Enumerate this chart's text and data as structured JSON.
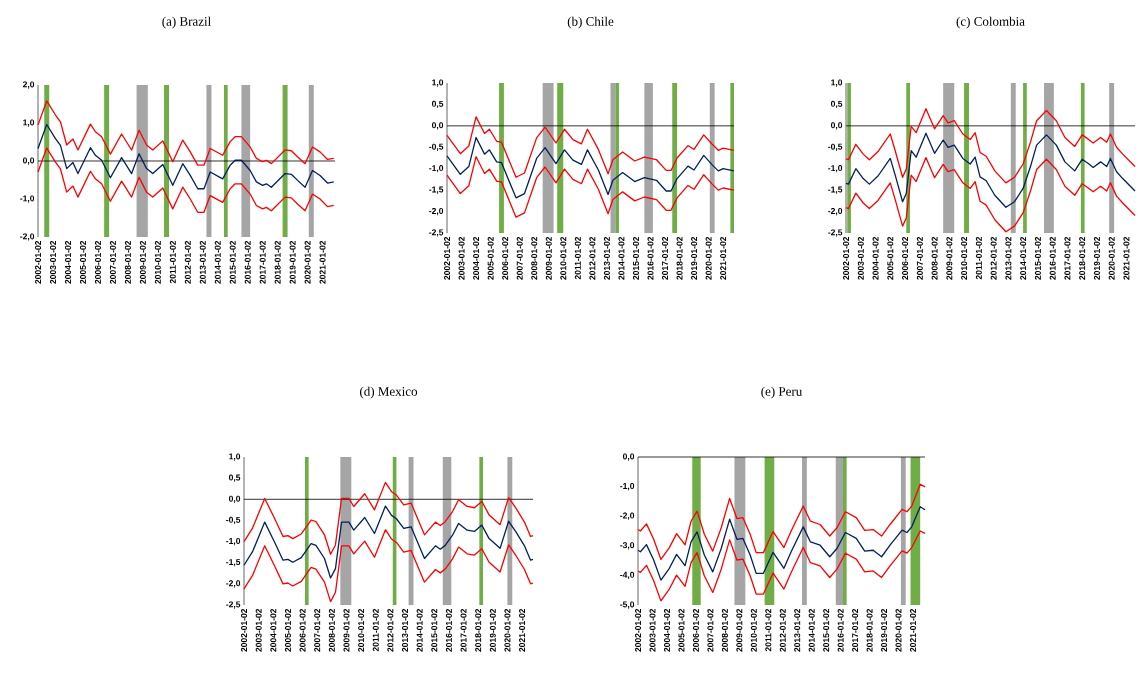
{
  "chart_data": [
    {
      "type": "line",
      "title": "(a) Brazil",
      "x": [
        "2002-01",
        "2002-08",
        "2003-03",
        "2003-07",
        "2003-12",
        "2004-05",
        "2004-09",
        "2005-07",
        "2005-11",
        "2006-04",
        "2006-11",
        "2007-08",
        "2008-04",
        "2008-10",
        "2009-04",
        "2009-09",
        "2010-05",
        "2011-01",
        "2011-09",
        "2012-03",
        "2012-09",
        "2013-02",
        "2013-07",
        "2014-05",
        "2014-11",
        "2015-03",
        "2015-08",
        "2016-03",
        "2016-08",
        "2017-01",
        "2017-04",
        "2017-08",
        "2018-07",
        "2018-12",
        "2019-05",
        "2019-11",
        "2020-05",
        "2020-11",
        "2021-05",
        "2021-10"
      ],
      "series": [
        {
          "color": "#ff0000",
          "values": [
            0.95,
            1.58,
            1.21,
            1.03,
            0.42,
            0.58,
            0.29,
            0.97,
            0.77,
            0.64,
            0.18,
            0.71,
            0.29,
            0.81,
            0.42,
            0.29,
            0.53,
            -0.02,
            0.55,
            0.24,
            -0.11,
            -0.11,
            0.33,
            0.15,
            0.51,
            0.64,
            0.64,
            0.37,
            0.07,
            -0.02,
            0.02,
            -0.07,
            0.29,
            0.27,
            0.11,
            -0.07,
            0.37,
            0.24,
            0.04,
            0.07
          ]
        },
        {
          "color": "#002060",
          "values": [
            0.33,
            0.96,
            0.59,
            0.41,
            -0.2,
            -0.04,
            -0.33,
            0.35,
            0.15,
            0.02,
            -0.44,
            0.09,
            -0.33,
            0.19,
            -0.2,
            -0.33,
            -0.09,
            -0.64,
            -0.07,
            -0.38,
            -0.73,
            -0.73,
            -0.29,
            -0.47,
            -0.11,
            0.02,
            0.02,
            -0.25,
            -0.55,
            -0.64,
            -0.6,
            -0.69,
            -0.33,
            -0.35,
            -0.51,
            -0.69,
            -0.25,
            -0.38,
            -0.58,
            -0.55
          ]
        },
        {
          "color": "#ff0000",
          "values": [
            -0.29,
            0.34,
            -0.03,
            -0.21,
            -0.82,
            -0.66,
            -0.95,
            -0.27,
            -0.47,
            -0.6,
            -1.06,
            -0.53,
            -0.95,
            -0.43,
            -0.82,
            -0.95,
            -0.71,
            -1.26,
            -0.69,
            -1.0,
            -1.35,
            -1.35,
            -0.91,
            -1.09,
            -0.73,
            -0.6,
            -0.6,
            -0.87,
            -1.17,
            -1.26,
            -1.22,
            -1.31,
            -0.95,
            -0.97,
            -1.13,
            -1.31,
            -0.87,
            -1.0,
            -1.2,
            -1.17
          ]
        }
      ],
      "xlim": [
        "2002-01",
        "2021-11"
      ],
      "ylim": [
        -2,
        2
      ],
      "xticks": [
        "2002-01-02",
        "2003-01-02",
        "2004-01-02",
        "2005-01-02",
        "2006-01-02",
        "2007-01-02",
        "2008-01-02",
        "2009-01-02",
        "2010-01-02",
        "2011-01-02",
        "2012-01-02",
        "2013-01-02",
        "2014-01-02",
        "2015-01-02",
        "2016-01-02",
        "2017-01-02",
        "2018-01-02",
        "2019-01-02",
        "2020-01-02",
        "2021-01-02"
      ],
      "yticks": [
        {
          "value": 2,
          "label": "2,0"
        },
        {
          "value": 1,
          "label": "1,0"
        },
        {
          "value": 0,
          "label": "0,0"
        },
        {
          "value": -1,
          "label": "-1,0"
        },
        {
          "value": -2,
          "label": "-2,0"
        }
      ],
      "ref_lines": [
        {
          "axis": "y",
          "value": 0,
          "color": "#000000"
        }
      ],
      "bands": [
        {
          "axis": "x",
          "from": "2002-06",
          "to": "2002-10",
          "color": "#70ad47"
        },
        {
          "axis": "x",
          "from": "2006-06",
          "to": "2006-10",
          "color": "#70ad47"
        },
        {
          "axis": "x",
          "from": "2008-08",
          "to": "2009-05",
          "color": "#a5a5a5"
        },
        {
          "axis": "x",
          "from": "2010-06",
          "to": "2010-10",
          "color": "#70ad47"
        },
        {
          "axis": "x",
          "from": "2013-04",
          "to": "2013-08",
          "color": "#a5a5a5"
        },
        {
          "axis": "x",
          "from": "2014-06",
          "to": "2014-09",
          "color": "#70ad47"
        },
        {
          "axis": "x",
          "from": "2015-08",
          "to": "2016-03",
          "color": "#a5a5a5"
        },
        {
          "axis": "x",
          "from": "2018-05",
          "to": "2018-09",
          "color": "#70ad47"
        },
        {
          "axis": "x",
          "from": "2020-02",
          "to": "2020-06",
          "color": "#a5a5a5"
        }
      ]
    },
    {
      "type": "line",
      "title": "(b) Chile",
      "x": [
        "2002-01",
        "2002-12",
        "2003-07",
        "2004-01",
        "2004-08",
        "2004-12",
        "2005-06",
        "2005-10",
        "2006-10",
        "2007-05",
        "2008-03",
        "2008-10",
        "2009-07",
        "2010-02",
        "2010-09",
        "2011-04",
        "2011-09",
        "2012-06",
        "2013-02",
        "2013-06",
        "2014-02",
        "2014-12",
        "2015-08",
        "2016-06",
        "2017-02",
        "2017-06",
        "2017-11",
        "2018-08",
        "2019-01",
        "2019-09",
        "2020-04",
        "2020-09",
        "2021-01",
        "2021-10"
      ],
      "series": [
        {
          "color": "#ff0000",
          "values": [
            -0.22,
            -0.65,
            -0.47,
            0.21,
            -0.18,
            -0.08,
            -0.36,
            -0.38,
            -1.2,
            -1.1,
            -0.28,
            -0.03,
            -0.4,
            -0.08,
            -0.32,
            -0.42,
            -0.08,
            -0.55,
            -1.12,
            -0.79,
            -0.61,
            -0.82,
            -0.73,
            -0.79,
            -1.04,
            -1.04,
            -0.75,
            -0.46,
            -0.55,
            -0.21,
            -0.43,
            -0.57,
            -0.52,
            -0.57
          ]
        },
        {
          "color": "#002060",
          "values": [
            -0.7,
            -1.13,
            -0.95,
            -0.27,
            -0.66,
            -0.56,
            -0.84,
            -0.86,
            -1.68,
            -1.58,
            -0.76,
            -0.51,
            -0.88,
            -0.56,
            -0.8,
            -0.9,
            -0.56,
            -1.03,
            -1.6,
            -1.27,
            -1.09,
            -1.3,
            -1.21,
            -1.27,
            -1.52,
            -1.52,
            -1.23,
            -0.94,
            -1.03,
            -0.69,
            -0.91,
            -1.05,
            -1.0,
            -1.05
          ]
        },
        {
          "color": "#ff0000",
          "values": [
            -1.15,
            -1.58,
            -1.4,
            -0.72,
            -1.11,
            -1.01,
            -1.29,
            -1.31,
            -2.13,
            -2.03,
            -1.21,
            -0.96,
            -1.33,
            -1.01,
            -1.25,
            -1.35,
            -1.01,
            -1.48,
            -2.05,
            -1.72,
            -1.54,
            -1.75,
            -1.66,
            -1.72,
            -1.97,
            -1.97,
            -1.68,
            -1.39,
            -1.48,
            -1.14,
            -1.36,
            -1.5,
            -1.45,
            -1.5
          ]
        }
      ],
      "xlim": [
        "2002-01",
        "2021-10"
      ],
      "ylim": [
        -2.5,
        1
      ],
      "xticks": [
        "2002-01-02",
        "2003-01-02",
        "2004-01-02",
        "2005-01-02",
        "2006-01-02",
        "2007-01-02",
        "2008-01-02",
        "2009-01-02",
        "2010-01-02",
        "2011-01-02",
        "2012-01-02",
        "2013-01-02",
        "2014-01-02",
        "2015-01-02",
        "2016-01-02",
        "2017-01-02",
        "2018-01-02",
        "2019-01-02",
        "2020-01-02",
        "2021-01-02"
      ],
      "yticks": [
        {
          "value": 1,
          "label": "1,0"
        },
        {
          "value": 0.5,
          "label": "0,5"
        },
        {
          "value": 0,
          "label": "0,0"
        },
        {
          "value": -0.5,
          "label": "-0,5"
        },
        {
          "value": -1,
          "label": "-1,0"
        },
        {
          "value": -1.5,
          "label": "-1,5"
        },
        {
          "value": -2,
          "label": "-2,0"
        },
        {
          "value": -2.5,
          "label": "-2,5"
        }
      ],
      "ref_lines": [
        {
          "axis": "y",
          "value": 0,
          "color": "#000000"
        }
      ],
      "bands": [
        {
          "axis": "x",
          "from": "2005-08",
          "to": "2005-12",
          "color": "#70ad47"
        },
        {
          "axis": "x",
          "from": "2008-08",
          "to": "2009-05",
          "color": "#a5a5a5"
        },
        {
          "axis": "x",
          "from": "2009-08",
          "to": "2010-01",
          "color": "#70ad47"
        },
        {
          "axis": "x",
          "from": "2013-04",
          "to": "2013-08",
          "color": "#a5a5a5"
        },
        {
          "axis": "x",
          "from": "2013-08",
          "to": "2013-11",
          "color": "#70ad47"
        },
        {
          "axis": "x",
          "from": "2015-08",
          "to": "2016-03",
          "color": "#a5a5a5"
        },
        {
          "axis": "x",
          "from": "2017-07",
          "to": "2017-11",
          "color": "#70ad47"
        },
        {
          "axis": "x",
          "from": "2020-02",
          "to": "2020-06",
          "color": "#a5a5a5"
        },
        {
          "axis": "x",
          "from": "2021-07",
          "to": "2021-10",
          "color": "#70ad47"
        }
      ]
    },
    {
      "type": "line",
      "title": "(c) Colombia",
      "x": [
        "2002-01",
        "2002-03",
        "2002-09",
        "2003-03",
        "2003-08",
        "2004-03",
        "2005-01",
        "2005-05",
        "2005-11",
        "2006-02",
        "2006-06",
        "2006-10",
        "2007-06",
        "2008-01",
        "2008-08",
        "2008-12",
        "2009-05",
        "2009-12",
        "2010-06",
        "2010-10",
        "2011-02",
        "2011-07",
        "2012-02",
        "2012-11",
        "2013-06",
        "2014-01",
        "2014-07",
        "2014-12",
        "2015-08",
        "2016-04",
        "2016-11",
        "2017-07",
        "2018-01",
        "2018-06",
        "2018-10",
        "2019-04",
        "2019-09",
        "2019-12",
        "2020-05",
        "2020-10",
        "2021-08"
      ],
      "series": [
        {
          "color": "#ff0000",
          "values": [
            -0.77,
            -0.79,
            -0.43,
            -0.66,
            -0.79,
            -0.6,
            -0.19,
            -0.58,
            -1.2,
            -1.01,
            -0.01,
            -0.16,
            0.4,
            -0.07,
            0.24,
            0.07,
            0.12,
            -0.19,
            -0.32,
            -0.16,
            -0.62,
            -0.71,
            -1.05,
            -1.33,
            -1.2,
            -0.89,
            -0.38,
            0.12,
            0.36,
            0.12,
            -0.27,
            -0.48,
            -0.21,
            -0.31,
            -0.4,
            -0.27,
            -0.38,
            -0.19,
            -0.5,
            -0.66,
            -0.95
          ]
        },
        {
          "color": "#002060",
          "values": [
            -1.34,
            -1.36,
            -1.0,
            -1.23,
            -1.36,
            -1.17,
            -0.76,
            -1.15,
            -1.77,
            -1.58,
            -0.58,
            -0.73,
            -0.17,
            -0.64,
            -0.33,
            -0.5,
            -0.45,
            -0.76,
            -0.89,
            -0.73,
            -1.19,
            -1.28,
            -1.62,
            -1.9,
            -1.77,
            -1.46,
            -0.95,
            -0.45,
            -0.21,
            -0.45,
            -0.84,
            -1.05,
            -0.78,
            -0.88,
            -0.97,
            -0.84,
            -0.95,
            -0.76,
            -1.07,
            -1.23,
            -1.52
          ]
        },
        {
          "color": "#ff0000",
          "values": [
            -1.91,
            -1.93,
            -1.57,
            -1.8,
            -1.93,
            -1.74,
            -1.33,
            -1.72,
            -2.34,
            -2.15,
            -1.15,
            -1.3,
            -0.74,
            -1.21,
            -0.9,
            -1.07,
            -1.02,
            -1.33,
            -1.46,
            -1.3,
            -1.76,
            -1.85,
            -2.19,
            -2.47,
            -2.34,
            -2.03,
            -1.52,
            -1.02,
            -0.78,
            -1.02,
            -1.41,
            -1.62,
            -1.35,
            -1.45,
            -1.54,
            -1.41,
            -1.52,
            -1.33,
            -1.64,
            -1.8,
            -2.09
          ]
        }
      ],
      "xlim": [
        "2002-01",
        "2021-08"
      ],
      "ylim": [
        -2.5,
        1
      ],
      "xticks": [
        "2002-01-02",
        "2003-01-02",
        "2004-01-02",
        "2005-01-02",
        "2006-01-02",
        "2007-01-02",
        "2008-01-02",
        "2009-01-02",
        "2010-01-02",
        "2011-01-02",
        "2012-01-02",
        "2013-01-02",
        "2014-01-02",
        "2015-01-02",
        "2016-01-02",
        "2017-01-02",
        "2018-01-02",
        "2019-01-02",
        "2020-01-02",
        "2021-01-02"
      ],
      "yticks": [
        {
          "value": 1,
          "label": "1,0"
        },
        {
          "value": 0.5,
          "label": "0,5"
        },
        {
          "value": 0,
          "label": "0,0"
        },
        {
          "value": -0.5,
          "label": "-0,5"
        },
        {
          "value": -1,
          "label": "-1,0"
        },
        {
          "value": -1.5,
          "label": "-1,5"
        },
        {
          "value": -2,
          "label": "-2,0"
        },
        {
          "value": -2.5,
          "label": "-2,5"
        }
      ],
      "ref_lines": [
        {
          "axis": "y",
          "value": 0,
          "color": "#000000"
        }
      ],
      "bands": [
        {
          "axis": "x",
          "from": "2002-02",
          "to": "2002-05",
          "color": "#70ad47"
        },
        {
          "axis": "x",
          "from": "2006-02",
          "to": "2006-05",
          "color": "#70ad47"
        },
        {
          "axis": "x",
          "from": "2008-08",
          "to": "2009-05",
          "color": "#a5a5a5"
        },
        {
          "axis": "x",
          "from": "2010-01",
          "to": "2010-05",
          "color": "#70ad47"
        },
        {
          "axis": "x",
          "from": "2013-03",
          "to": "2013-07",
          "color": "#a5a5a5"
        },
        {
          "axis": "x",
          "from": "2014-01",
          "to": "2014-04",
          "color": "#70ad47"
        },
        {
          "axis": "x",
          "from": "2015-06",
          "to": "2016-02",
          "color": "#a5a5a5"
        },
        {
          "axis": "x",
          "from": "2017-12",
          "to": "2018-03",
          "color": "#70ad47"
        },
        {
          "axis": "x",
          "from": "2019-11",
          "to": "2020-03",
          "color": "#a5a5a5"
        }
      ]
    },
    {
      "type": "line",
      "title": "(d) Mexico",
      "x": [
        "2002-01",
        "2002-08",
        "2003-06",
        "2004-02",
        "2004-09",
        "2005-01",
        "2005-05",
        "2005-12",
        "2006-08",
        "2006-12",
        "2007-07",
        "2007-12",
        "2008-04",
        "2008-09",
        "2009-03",
        "2009-07",
        "2010-04",
        "2010-12",
        "2011-09",
        "2012-02",
        "2012-06",
        "2012-12",
        "2013-06",
        "2014-05",
        "2015-02",
        "2015-06",
        "2015-10",
        "2016-04",
        "2016-09",
        "2017-04",
        "2017-10",
        "2018-04",
        "2018-10",
        "2019-07",
        "2020-02",
        "2020-08",
        "2021-03",
        "2021-08",
        "2021-10"
      ],
      "series": [
        {
          "color": "#ff0000",
          "values": [
            -1.0,
            -0.68,
            0.02,
            -0.45,
            -0.88,
            -0.86,
            -0.93,
            -0.82,
            -0.49,
            -0.53,
            -0.84,
            -1.3,
            -1.08,
            0.02,
            0.02,
            -0.17,
            0.13,
            -0.25,
            0.4,
            0.18,
            0.1,
            -0.13,
            -0.09,
            -0.84,
            -0.54,
            -0.62,
            -0.53,
            -0.29,
            -0.01,
            -0.17,
            -0.2,
            -0.05,
            -0.37,
            -0.6,
            0.04,
            -0.21,
            -0.54,
            -0.88,
            -0.86
          ]
        },
        {
          "color": "#002060",
          "values": [
            -1.56,
            -1.24,
            -0.54,
            -1.01,
            -1.44,
            -1.42,
            -1.49,
            -1.38,
            -1.05,
            -1.09,
            -1.4,
            -1.86,
            -1.64,
            -0.54,
            -0.54,
            -0.73,
            -0.43,
            -0.81,
            -0.16,
            -0.38,
            -0.46,
            -0.69,
            -0.65,
            -1.4,
            -1.1,
            -1.18,
            -1.09,
            -0.85,
            -0.57,
            -0.73,
            -0.76,
            -0.61,
            -0.93,
            -1.16,
            -0.52,
            -0.77,
            -1.1,
            -1.44,
            -1.42
          ]
        },
        {
          "color": "#ff0000",
          "values": [
            -2.12,
            -1.8,
            -1.1,
            -1.57,
            -2.0,
            -1.98,
            -2.05,
            -1.94,
            -1.61,
            -1.65,
            -1.96,
            -2.42,
            -2.2,
            -1.1,
            -1.1,
            -1.29,
            -0.99,
            -1.37,
            -0.72,
            -0.94,
            -1.02,
            -1.25,
            -1.21,
            -1.96,
            -1.66,
            -1.74,
            -1.65,
            -1.41,
            -1.13,
            -1.29,
            -1.32,
            -1.17,
            -1.49,
            -1.72,
            -1.08,
            -1.33,
            -1.66,
            -2.0,
            -1.98
          ]
        }
      ],
      "xlim": [
        "2002-01",
        "2021-10"
      ],
      "ylim": [
        -2.5,
        1
      ],
      "xticks": [
        "2002-01-02",
        "2003-01-02",
        "2004-01-02",
        "2005-01-02",
        "2006-01-02",
        "2007-01-02",
        "2008-01-02",
        "2009-01-02",
        "2010-01-02",
        "2011-01-02",
        "2012-01-02",
        "2013-01-02",
        "2014-01-02",
        "2015-01-02",
        "2016-01-02",
        "2017-01-02",
        "2018-01-02",
        "2019-01-02",
        "2020-01-02",
        "2021-01-02"
      ],
      "yticks": [
        {
          "value": 1,
          "label": "1,0"
        },
        {
          "value": 0.5,
          "label": "0,5"
        },
        {
          "value": 0,
          "label": "0,0"
        },
        {
          "value": -0.5,
          "label": "-0,5"
        },
        {
          "value": -1,
          "label": "-1,0"
        },
        {
          "value": -1.5,
          "label": "-1,5"
        },
        {
          "value": -2,
          "label": "-2,0"
        },
        {
          "value": -2.5,
          "label": "-2,5"
        }
      ],
      "ref_lines": [
        {
          "axis": "y",
          "value": 0,
          "color": "#000000"
        }
      ],
      "bands": [
        {
          "axis": "x",
          "from": "2006-03",
          "to": "2006-06",
          "color": "#70ad47"
        },
        {
          "axis": "x",
          "from": "2008-08",
          "to": "2009-05",
          "color": "#a5a5a5"
        },
        {
          "axis": "x",
          "from": "2012-03",
          "to": "2012-06",
          "color": "#70ad47"
        },
        {
          "axis": "x",
          "from": "2013-04",
          "to": "2013-08",
          "color": "#a5a5a5"
        },
        {
          "axis": "x",
          "from": "2015-08",
          "to": "2016-03",
          "color": "#a5a5a5"
        },
        {
          "axis": "x",
          "from": "2018-02",
          "to": "2018-05",
          "color": "#70ad47"
        },
        {
          "axis": "x",
          "from": "2020-01",
          "to": "2020-05",
          "color": "#a5a5a5"
        }
      ]
    },
    {
      "type": "line",
      "title": "(e) Peru",
      "x": [
        "2002-01",
        "2002-03",
        "2002-08",
        "2003-02",
        "2003-08",
        "2004-03",
        "2004-09",
        "2005-04",
        "2005-09",
        "2006-02",
        "2006-08",
        "2007-03",
        "2007-10",
        "2008-05",
        "2008-11",
        "2009-04",
        "2009-10",
        "2010-03",
        "2010-09",
        "2011-05",
        "2012-02",
        "2012-08",
        "2013-06",
        "2013-12",
        "2014-08",
        "2015-04",
        "2015-10",
        "2016-05",
        "2017-02",
        "2017-09",
        "2018-04",
        "2018-11",
        "2019-06",
        "2020-04",
        "2020-08",
        "2020-12",
        "2021-07",
        "2021-11"
      ],
      "series": [
        {
          "color": "#ff0000",
          "values": [
            -2.45,
            -2.5,
            -2.26,
            -2.78,
            -3.46,
            -3.06,
            -2.59,
            -2.97,
            -2.17,
            -1.83,
            -2.61,
            -3.18,
            -2.39,
            -1.4,
            -2.08,
            -2.05,
            -2.61,
            -3.23,
            -3.23,
            -2.52,
            -3.06,
            -2.5,
            -1.66,
            -2.17,
            -2.28,
            -2.67,
            -2.39,
            -1.85,
            -2.05,
            -2.48,
            -2.45,
            -2.67,
            -2.28,
            -1.77,
            -1.85,
            -1.66,
            -0.92,
            -1.01
          ]
        },
        {
          "color": "#002060",
          "values": [
            -3.15,
            -3.2,
            -2.96,
            -3.48,
            -4.16,
            -3.76,
            -3.29,
            -3.67,
            -2.87,
            -2.53,
            -3.31,
            -3.88,
            -3.09,
            -2.1,
            -2.78,
            -2.75,
            -3.31,
            -3.93,
            -3.93,
            -3.22,
            -3.76,
            -3.2,
            -2.36,
            -2.87,
            -2.98,
            -3.37,
            -3.09,
            -2.55,
            -2.75,
            -3.18,
            -3.15,
            -3.37,
            -2.98,
            -2.47,
            -2.55,
            -2.36,
            -1.68,
            -1.78
          ]
        },
        {
          "color": "#ff0000",
          "values": [
            -3.85,
            -3.9,
            -3.66,
            -4.18,
            -4.86,
            -4.46,
            -3.99,
            -4.37,
            -3.57,
            -3.23,
            -4.01,
            -4.58,
            -3.79,
            -2.8,
            -3.48,
            -3.45,
            -4.01,
            -4.63,
            -4.63,
            -3.92,
            -4.46,
            -3.9,
            -3.06,
            -3.57,
            -3.68,
            -4.07,
            -3.79,
            -3.25,
            -3.45,
            -3.88,
            -3.85,
            -4.07,
            -3.68,
            -3.17,
            -3.25,
            -3.06,
            -2.5,
            -2.58
          ]
        }
      ],
      "xlim": [
        "2002-01",
        "2021-11"
      ],
      "ylim": [
        -5,
        0
      ],
      "xticks": [
        "2002-01-02",
        "2003-01-02",
        "2004-01-02",
        "2005-01-02",
        "2006-01-02",
        "2007-01-02",
        "2008-01-02",
        "2009-01-02",
        "2010-01-02",
        "2011-01-02",
        "2012-01-02",
        "2013-01-02",
        "2014-01-02",
        "2015-01-02",
        "2016-01-02",
        "2017-01-02",
        "2018-01-02",
        "2019-01-02",
        "2020-01-02",
        "2021-01-02"
      ],
      "yticks": [
        {
          "value": 0,
          "label": "0,0"
        },
        {
          "value": -1,
          "label": "-1,0"
        },
        {
          "value": -2,
          "label": "-2,0"
        },
        {
          "value": -3,
          "label": "-3,0"
        },
        {
          "value": -4,
          "label": "-4,0"
        },
        {
          "value": -5,
          "label": "-5,0"
        }
      ],
      "ref_lines": [
        {
          "axis": "y",
          "value": 0,
          "color": "#000000"
        }
      ],
      "bands": [
        {
          "axis": "x",
          "from": "2005-10",
          "to": "2006-05",
          "color": "#70ad47"
        },
        {
          "axis": "x",
          "from": "2008-09",
          "to": "2009-06",
          "color": "#a5a5a5"
        },
        {
          "axis": "x",
          "from": "2010-10",
          "to": "2011-06",
          "color": "#70ad47"
        },
        {
          "axis": "x",
          "from": "2013-05",
          "to": "2013-09",
          "color": "#a5a5a5"
        },
        {
          "axis": "x",
          "from": "2015-09",
          "to": "2016-03",
          "color": "#a5a5a5"
        },
        {
          "axis": "x",
          "from": "2016-03",
          "to": "2016-06",
          "color": "#70ad47"
        },
        {
          "axis": "x",
          "from": "2020-03",
          "to": "2020-07",
          "color": "#a5a5a5"
        },
        {
          "axis": "x",
          "from": "2020-11",
          "to": "2021-07",
          "color": "#70ad47"
        }
      ]
    }
  ]
}
